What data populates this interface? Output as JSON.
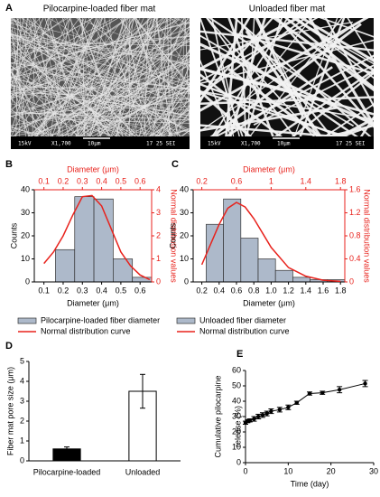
{
  "images": {
    "label": "A",
    "items": [
      {
        "title": "Pilocarpine-loaded fiber mat",
        "caption": [
          "15kV",
          "X1,700",
          "10μm",
          "17 25 SEI"
        ]
      },
      {
        "title": "Unloaded fiber mat",
        "caption": [
          "15kV",
          "X1,700",
          "10μm",
          "17 25 SEI"
        ]
      }
    ]
  },
  "chart_data": [
    {
      "type": "histogram",
      "label": "B",
      "xlabel": "Diameter (μm)",
      "ylabel": "Counts",
      "x2label": "Diameter (μm)",
      "y2label": "Normal distribution values",
      "bins": [
        0.16,
        0.26,
        0.36,
        0.46,
        0.56,
        0.66
      ],
      "xlim": [
        0.05,
        0.66
      ],
      "xticks": [
        0.1,
        0.2,
        0.3,
        0.4,
        0.5,
        0.6
      ],
      "x2lim": [
        0.05,
        0.66
      ],
      "x2ticks": [
        0.1,
        0.2,
        0.3,
        0.4,
        0.5,
        0.6
      ],
      "ylim": [
        0,
        40
      ],
      "yticks": [
        0,
        10,
        20,
        30,
        40
      ],
      "y2lim": [
        0,
        4
      ],
      "y2ticks": [
        0,
        1,
        2,
        3,
        4
      ],
      "series": [
        {
          "name": "Pilocarpine-loaded fiber diameter",
          "color": "#adb9ca",
          "values": [
            14,
            37,
            36,
            10,
            2
          ]
        },
        {
          "name": "Normal distribution curve",
          "color": "#e8221c",
          "axis": "y2",
          "x": [
            0.1,
            0.15,
            0.2,
            0.25,
            0.3,
            0.35,
            0.4,
            0.45,
            0.5,
            0.55,
            0.6,
            0.65
          ],
          "values": [
            0.8,
            1.3,
            2.0,
            2.9,
            3.7,
            3.75,
            3.3,
            2.3,
            1.3,
            0.7,
            0.3,
            0.1
          ]
        }
      ]
    },
    {
      "type": "histogram",
      "label": "C",
      "xlabel": "Diameter (μm)",
      "ylabel": "Counts",
      "x2label": "Diameter (μm)",
      "y2label": "Normal distribution values",
      "bins": [
        0.25,
        0.45,
        0.65,
        0.85,
        1.05,
        1.25,
        1.45,
        1.65,
        1.85
      ],
      "xlim": [
        0.1,
        1.85
      ],
      "xticks": [
        0.2,
        0.4,
        0.6,
        0.8,
        {
          "value": 1,
          "label": "1.0"
        },
        1.2,
        1.4,
        1.6,
        1.8
      ],
      "x2lim": [
        0.1,
        1.85
      ],
      "x2ticks": [
        0.2,
        0.6,
        1,
        1.4,
        1.8
      ],
      "ylim": [
        0,
        40
      ],
      "yticks": [
        0,
        10,
        20,
        30,
        40
      ],
      "y2lim": [
        0,
        1.6
      ],
      "y2ticks": [
        0,
        0.4,
        0.8,
        1.2,
        1.6
      ],
      "series": [
        {
          "name": "Unloaded fiber diameter",
          "color": "#adb9ca",
          "values": [
            25,
            36,
            19,
            10,
            5,
            2,
            1,
            1
          ]
        },
        {
          "name": "Normal distribution curve",
          "color": "#e8221c",
          "axis": "y2",
          "x": [
            0.2,
            0.3,
            0.4,
            0.5,
            0.6,
            0.7,
            0.8,
            0.9,
            1.0,
            1.2,
            1.4,
            1.6,
            1.8
          ],
          "values": [
            0.3,
            0.65,
            1.0,
            1.28,
            1.38,
            1.3,
            1.1,
            0.85,
            0.6,
            0.25,
            0.1,
            0.03,
            0.01
          ]
        }
      ]
    },
    {
      "type": "bar",
      "label": "D",
      "ylabel": "Fiber mat pore size (μm)",
      "categories": [
        "Pilocarpine-loaded",
        "Unloaded"
      ],
      "values": [
        0.6,
        3.5
      ],
      "errors": [
        0.1,
        0.85
      ],
      "colors": [
        "#000000",
        "#ffffff"
      ],
      "ylim": [
        0,
        5
      ],
      "yticks": [
        0,
        1,
        2,
        3,
        4,
        5
      ]
    },
    {
      "type": "line",
      "label": "E",
      "xlabel": "Time (day)",
      "ylabel": [
        "Cumulative pilocarpine",
        "release (%)"
      ],
      "x": [
        0,
        0.5,
        1,
        2,
        3,
        4,
        5,
        6,
        8,
        10,
        12,
        15,
        18,
        22,
        28
      ],
      "values": [
        26,
        27,
        27.5,
        28.5,
        30,
        31,
        32,
        33.5,
        34.5,
        36,
        39,
        45,
        45.5,
        47.5,
        51.5
      ],
      "errors": [
        1,
        1,
        1,
        1.5,
        1.5,
        1.5,
        1.5,
        1.5,
        1.5,
        1.5,
        1,
        1,
        1,
        2,
        2
      ],
      "xlim": [
        0,
        30
      ],
      "xticks": [
        0,
        10,
        20,
        30
      ],
      "ylim": [
        0,
        60
      ],
      "yticks": [
        0,
        10,
        20,
        30,
        40,
        50,
        60
      ]
    }
  ]
}
